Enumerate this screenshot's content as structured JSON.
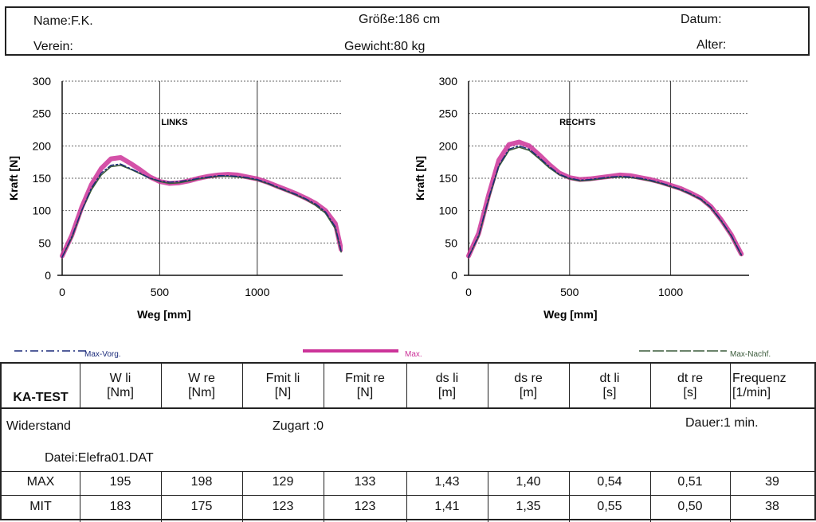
{
  "header": {
    "name": "Name:F.K.",
    "verein": "Verein:",
    "groesse": "Größe:186 cm",
    "gewicht": "Gewicht:80 kg",
    "datum": "Datum:",
    "alter": "Alter:"
  },
  "chart_data": [
    {
      "type": "line",
      "title": "LINKS",
      "xlabel": "Weg [mm]",
      "ylabel": "Kraft [N]",
      "xlim": [
        0,
        1450
      ],
      "ylim": [
        0,
        300
      ],
      "xticks": [
        0,
        500,
        1000
      ],
      "yticks": [
        0,
        50,
        100,
        150,
        200,
        250,
        300
      ],
      "grid": true,
      "series": [
        {
          "name": "Max-Vorg.",
          "color": "#1a2a7a",
          "x": [
            0,
            50,
            100,
            150,
            200,
            250,
            300,
            350,
            400,
            450,
            500,
            550,
            600,
            650,
            700,
            750,
            800,
            850,
            900,
            950,
            1000,
            1050,
            1100,
            1150,
            1200,
            1250,
            1300,
            1350,
            1400,
            1430
          ],
          "y": [
            28,
            60,
            100,
            135,
            158,
            170,
            172,
            165,
            158,
            150,
            146,
            144,
            145,
            147,
            150,
            152,
            154,
            154,
            153,
            151,
            148,
            143,
            137,
            131,
            125,
            118,
            110,
            98,
            75,
            38
          ]
        },
        {
          "name": "Max.",
          "color": "#cc3399",
          "x": [
            0,
            50,
            100,
            150,
            200,
            250,
            300,
            350,
            400,
            450,
            500,
            550,
            600,
            650,
            700,
            750,
            800,
            850,
            900,
            950,
            1000,
            1050,
            1100,
            1150,
            1200,
            1250,
            1300,
            1350,
            1400,
            1430
          ],
          "y": [
            30,
            62,
            105,
            140,
            165,
            180,
            182,
            173,
            163,
            152,
            145,
            142,
            143,
            146,
            150,
            153,
            155,
            156,
            155,
            152,
            149,
            144,
            138,
            132,
            126,
            119,
            111,
            100,
            80,
            40
          ]
        },
        {
          "name": "Max-Nachf.",
          "color": "#3a5a3a",
          "x": [
            0,
            50,
            100,
            150,
            200,
            250,
            300,
            350,
            400,
            450,
            500,
            550,
            600,
            650,
            700,
            750,
            800,
            850,
            900,
            950,
            1000,
            1050,
            1100,
            1150,
            1200,
            1250,
            1300,
            1350,
            1400,
            1430
          ],
          "y": [
            28,
            58,
            100,
            132,
            155,
            168,
            170,
            164,
            157,
            150,
            145,
            142,
            143,
            146,
            149,
            151,
            153,
            153,
            152,
            150,
            147,
            142,
            136,
            130,
            124,
            117,
            108,
            96,
            72,
            36
          ]
        }
      ]
    },
    {
      "type": "line",
      "title": "RECHTS",
      "xlabel": "Weg [mm]",
      "ylabel": "Kraft [N]",
      "xlim": [
        0,
        1400
      ],
      "ylim": [
        0,
        300
      ],
      "xticks": [
        0,
        500,
        1000
      ],
      "yticks": [
        0,
        50,
        100,
        150,
        200,
        250,
        300
      ],
      "grid": true,
      "series": [
        {
          "name": "Max-Vorg.",
          "color": "#1a2a7a",
          "x": [
            0,
            50,
            100,
            150,
            200,
            250,
            300,
            350,
            400,
            450,
            500,
            550,
            600,
            650,
            700,
            750,
            800,
            850,
            900,
            950,
            1000,
            1050,
            1100,
            1150,
            1200,
            1250,
            1300,
            1350
          ],
          "y": [
            28,
            62,
            120,
            170,
            195,
            200,
            195,
            182,
            168,
            156,
            150,
            147,
            148,
            150,
            152,
            153,
            152,
            150,
            147,
            143,
            138,
            133,
            126,
            118,
            105,
            85,
            62,
            32
          ]
        },
        {
          "name": "Max.",
          "color": "#cc3399",
          "x": [
            0,
            50,
            100,
            150,
            200,
            250,
            300,
            350,
            400,
            450,
            500,
            550,
            600,
            650,
            700,
            750,
            800,
            850,
            900,
            950,
            1000,
            1050,
            1100,
            1150,
            1200,
            1250,
            1300,
            1350
          ],
          "y": [
            30,
            65,
            125,
            178,
            202,
            206,
            200,
            186,
            171,
            158,
            151,
            148,
            149,
            151,
            153,
            155,
            154,
            151,
            148,
            144,
            139,
            134,
            127,
            119,
            106,
            86,
            63,
            33
          ]
        },
        {
          "name": "Max-Nachf.",
          "color": "#3a5a3a",
          "x": [
            0,
            50,
            100,
            150,
            200,
            250,
            300,
            350,
            400,
            450,
            500,
            550,
            600,
            650,
            700,
            750,
            800,
            850,
            900,
            950,
            1000,
            1050,
            1100,
            1150,
            1200,
            1250,
            1300,
            1350
          ],
          "y": [
            28,
            60,
            118,
            168,
            193,
            198,
            193,
            180,
            166,
            155,
            149,
            146,
            147,
            149,
            151,
            152,
            151,
            149,
            146,
            142,
            137,
            132,
            125,
            117,
            104,
            84,
            61,
            31
          ]
        }
      ]
    }
  ],
  "legend": {
    "vorg": "Max-Vorg.",
    "max": "Max.",
    "nachf": "Max-Nachf."
  },
  "table": {
    "title": "KA-TEST",
    "columns": [
      {
        "l1": "W li",
        "l2": "[Nm]"
      },
      {
        "l1": "W re",
        "l2": "[Nm]"
      },
      {
        "l1": "Fmit li",
        "l2": "[N]"
      },
      {
        "l1": "Fmit re",
        "l2": "[N]"
      },
      {
        "l1": "ds li",
        "l2": "[m]"
      },
      {
        "l1": "ds re",
        "l2": "[m]"
      },
      {
        "l1": "dt li",
        "l2": "[s]"
      },
      {
        "l1": "dt re",
        "l2": "[s]"
      },
      {
        "l1": "Frequenz",
        "l2": "[1/min]"
      }
    ],
    "info": {
      "widerstand": "Widerstand",
      "zugart": "Zugart :0",
      "dauer": "Dauer:1 min.",
      "datei": "Datei:Elefra01.DAT"
    },
    "rows": [
      {
        "label": "MAX",
        "values": [
          "195",
          "198",
          "129",
          "133",
          "1,43",
          "1,40",
          "0,54",
          "0,51",
          "39"
        ]
      },
      {
        "label": "MIT",
        "values": [
          "183",
          "175",
          "123",
          "123",
          "1,41",
          "1,35",
          "0,55",
          "0,50",
          "38"
        ]
      }
    ]
  }
}
